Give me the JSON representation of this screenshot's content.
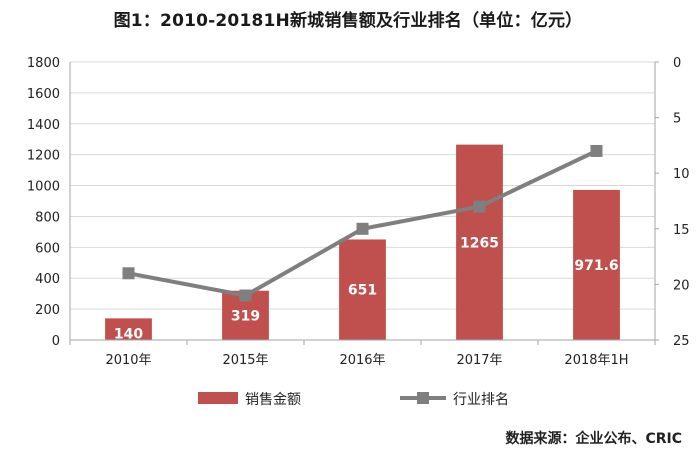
{
  "title": "图1：2010-20181H新城销售额及行业排名（单位：亿元）",
  "source": "数据来源：企业公布、CRIC",
  "colors": {
    "bar": "#C0504D",
    "line": "#7F7F7F",
    "grid": "#D9D9D9",
    "axis": "#A6A6A6"
  },
  "chart_data": {
    "type": "bar+line",
    "categories": [
      "2010年",
      "2015年",
      "2016年",
      "2017年",
      "2018年1H"
    ],
    "series": [
      {
        "name": "销售金额",
        "type": "bar",
        "axis": "left",
        "values": [
          140,
          319,
          651,
          1265,
          971.6
        ],
        "labels": [
          "140",
          "319",
          "651",
          "1265",
          "971.6"
        ]
      },
      {
        "name": "行业排名",
        "type": "line",
        "axis": "right",
        "marker": "square",
        "values": [
          19,
          21,
          15,
          13,
          8
        ]
      }
    ],
    "y_left": {
      "range": [
        0,
        1800
      ],
      "ticks": [
        0,
        200,
        400,
        600,
        800,
        1000,
        1200,
        1400,
        1600,
        1800
      ]
    },
    "y_right": {
      "range": [
        0,
        25
      ],
      "reversed": true,
      "ticks": [
        0,
        5,
        10,
        15,
        20,
        25
      ]
    },
    "grid": true,
    "legend": "bottom"
  }
}
